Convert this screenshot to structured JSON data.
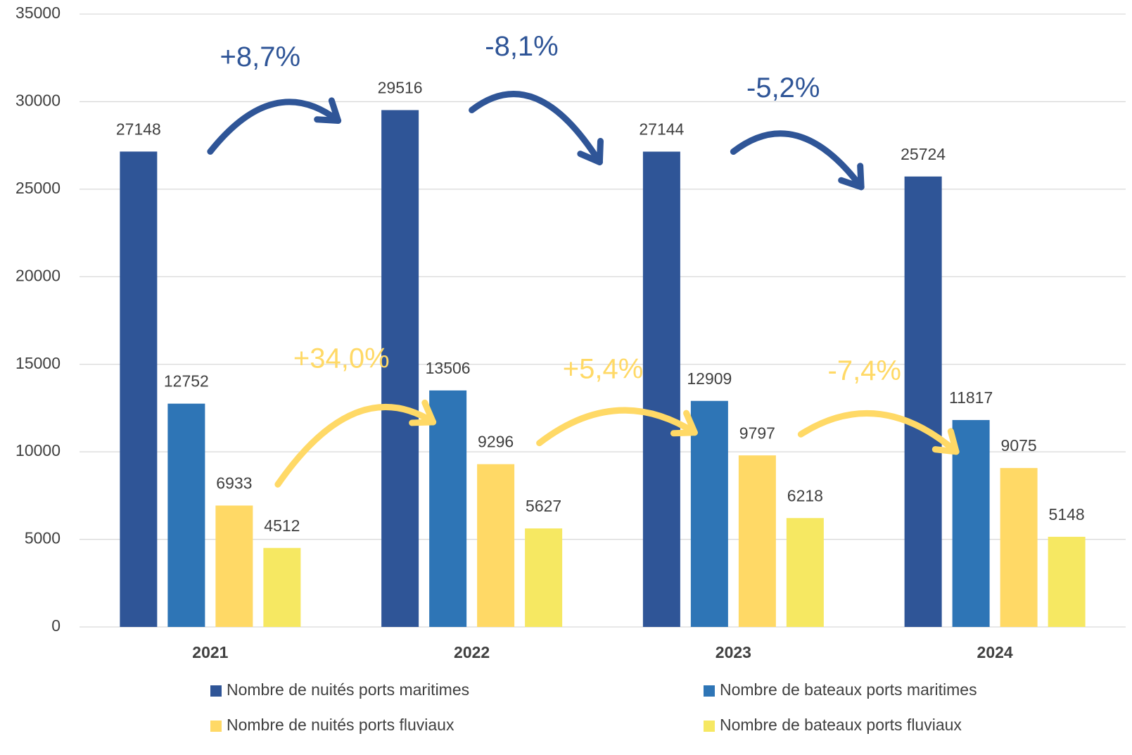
{
  "chart_data": {
    "type": "bar",
    "categories": [
      "2021",
      "2022",
      "2023",
      "2024"
    ],
    "series": [
      {
        "name": "Nombre de nuités ports maritimes",
        "color": "#2f5597",
        "values": [
          27148,
          29516,
          27144,
          25724
        ]
      },
      {
        "name": "Nombre de bateaux ports maritimes",
        "color": "#2e75b6",
        "values": [
          12752,
          13506,
          12909,
          11817
        ]
      },
      {
        "name": "Nombre de nuités ports fluviaux",
        "color": "#ffd966",
        "values": [
          6933,
          9296,
          9797,
          9075
        ]
      },
      {
        "name": "Nombre de bateaux ports fluviaux",
        "color": "#f6e862",
        "values": [
          4512,
          5627,
          6218,
          5148
        ]
      }
    ],
    "ylim": [
      0,
      35000
    ],
    "yticks": [
      0,
      5000,
      10000,
      15000,
      20000,
      25000,
      30000,
      35000
    ],
    "grid": true,
    "legend": "bottom",
    "annotations": [
      {
        "text": "+8,7%",
        "color": "#2f5597"
      },
      {
        "text": "-8,1%",
        "color": "#2f5597"
      },
      {
        "text": "-5,2%",
        "color": "#2f5597"
      },
      {
        "text": "+34,0%",
        "color": "#ffd966"
      },
      {
        "text": "+5,4%",
        "color": "#ffd966"
      },
      {
        "text": "-7,4%",
        "color": "#ffd966"
      }
    ]
  }
}
